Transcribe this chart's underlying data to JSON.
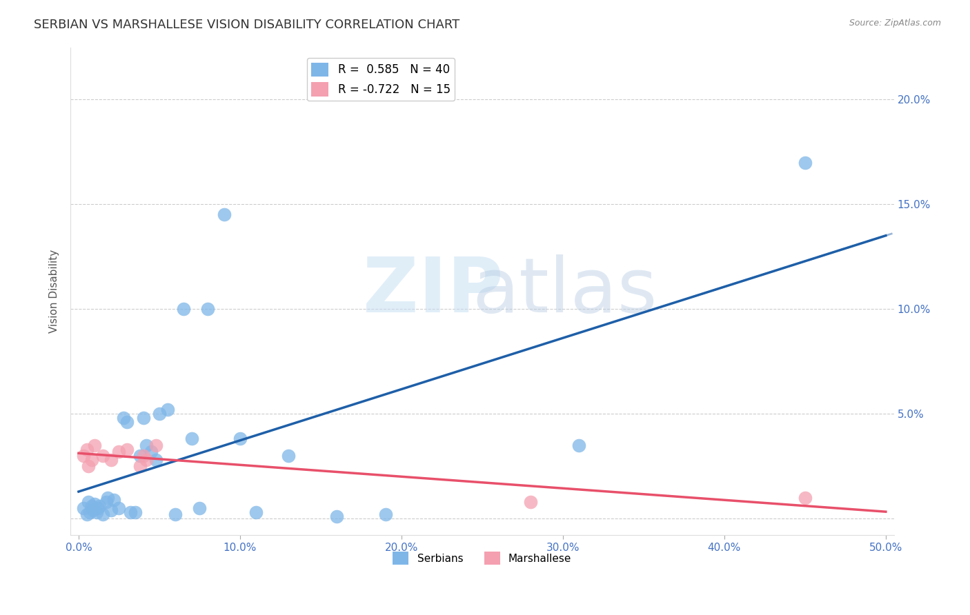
{
  "title": "SERBIAN VS MARSHALLESE VISION DISABILITY CORRELATION CHART",
  "source": "Source: ZipAtlas.com",
  "ylabel": "Vision Disability",
  "xlim": [
    0.0,
    0.5
  ],
  "xticks": [
    0.0,
    0.1,
    0.2,
    0.3,
    0.4,
    0.5
  ],
  "yticks": [
    0.0,
    0.05,
    0.1,
    0.15,
    0.2
  ],
  "ytick_labels": [
    "",
    "5.0%",
    "10.0%",
    "15.0%",
    "20.0%"
  ],
  "xtick_labels": [
    "0.0%",
    "10.0%",
    "20.0%",
    "30.0%",
    "40.0%",
    "50.0%"
  ],
  "serbian_R": 0.585,
  "serbian_N": 40,
  "marshallese_R": -0.722,
  "marshallese_N": 15,
  "serbian_color": "#7EB6E8",
  "marshallese_color": "#F4A0B0",
  "serbian_line_color": "#1E5FA8",
  "marshallese_line_color": "#E8506A",
  "axis_color": "#4472C4",
  "title_color": "#333333",
  "grid_color": "#CCCCCC",
  "serbian_x": [
    0.003,
    0.005,
    0.006,
    0.007,
    0.008,
    0.009,
    0.01,
    0.011,
    0.012,
    0.013,
    0.015,
    0.017,
    0.018,
    0.02,
    0.022,
    0.025,
    0.028,
    0.03,
    0.032,
    0.035,
    0.038,
    0.04,
    0.042,
    0.045,
    0.048,
    0.05,
    0.055,
    0.06,
    0.065,
    0.07,
    0.075,
    0.08,
    0.09,
    0.1,
    0.11,
    0.13,
    0.16,
    0.19,
    0.31,
    0.45
  ],
  "serbian_y": [
    0.005,
    0.002,
    0.008,
    0.003,
    0.006,
    0.004,
    0.007,
    0.003,
    0.005,
    0.006,
    0.002,
    0.008,
    0.01,
    0.004,
    0.009,
    0.005,
    0.048,
    0.046,
    0.003,
    0.003,
    0.03,
    0.048,
    0.035,
    0.032,
    0.028,
    0.05,
    0.052,
    0.002,
    0.1,
    0.038,
    0.005,
    0.1,
    0.145,
    0.038,
    0.003,
    0.03,
    0.001,
    0.002,
    0.035,
    0.17
  ],
  "marshallese_x": [
    0.003,
    0.005,
    0.006,
    0.008,
    0.01,
    0.015,
    0.02,
    0.025,
    0.03,
    0.038,
    0.04,
    0.042,
    0.048,
    0.28,
    0.45
  ],
  "marshallese_y": [
    0.03,
    0.033,
    0.025,
    0.028,
    0.035,
    0.03,
    0.028,
    0.032,
    0.033,
    0.025,
    0.03,
    0.028,
    0.035,
    0.008,
    0.01
  ]
}
